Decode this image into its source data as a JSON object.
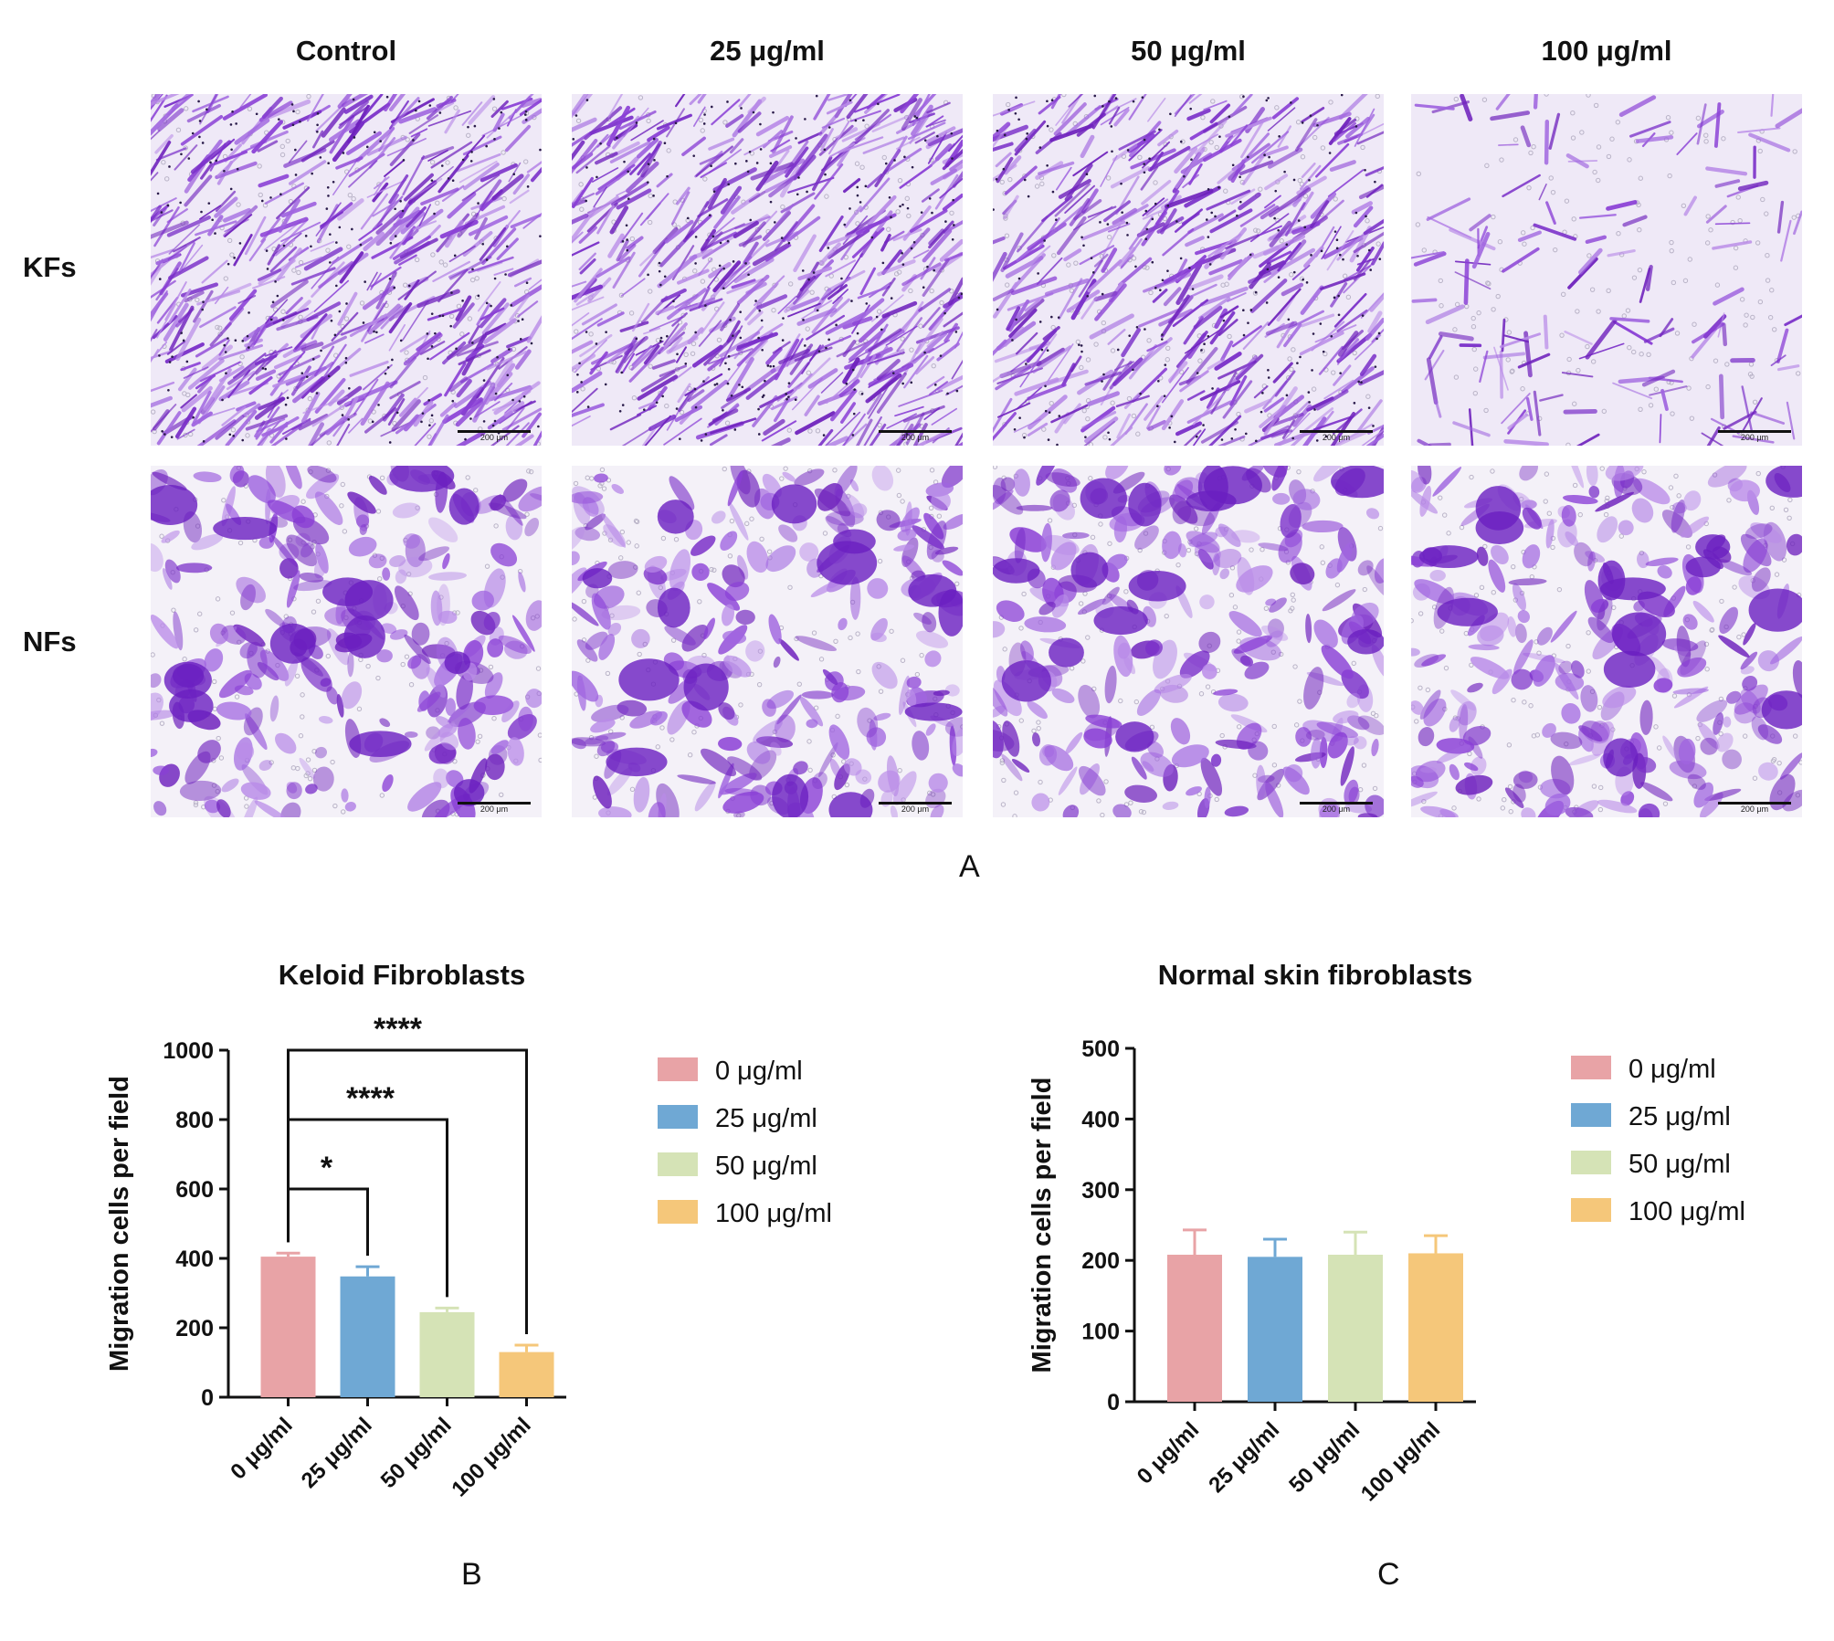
{
  "panel_a": {
    "letter": "A",
    "columns": [
      "Control",
      "25 μg/ml",
      "50 μg/ml",
      "100 μg/ml"
    ],
    "rows": [
      "KFs",
      "NFs"
    ],
    "scale_bar": "200 μm"
  },
  "colors": {
    "series": [
      "#e8a3a6",
      "#6fa8d4",
      "#d5e3b6",
      "#f5c77a"
    ],
    "stain": "#8a3fd6"
  },
  "chart_data": [
    {
      "type": "bar",
      "panel": "B",
      "title": "Keloid Fibroblasts",
      "ylabel": "Migration cells per field",
      "xlabel": "",
      "categories": [
        "0 μg/ml",
        "25 μg/ml",
        "50 μg/ml",
        "100 μg/ml"
      ],
      "values": [
        405,
        348,
        245,
        130
      ],
      "errors": [
        10,
        28,
        12,
        20
      ],
      "ylim": [
        0,
        1000
      ],
      "yticks": [
        0,
        200,
        400,
        600,
        800,
        1000
      ],
      "legend": [
        "0 μg/ml",
        "25 μg/ml",
        "50 μg/ml",
        "100 μg/ml"
      ],
      "legend_position": "right",
      "significance": [
        {
          "from": 0,
          "to": 1,
          "label": "*",
          "level": 1
        },
        {
          "from": 0,
          "to": 2,
          "label": "****",
          "level": 2
        },
        {
          "from": 0,
          "to": 3,
          "label": "****",
          "level": 3
        }
      ]
    },
    {
      "type": "bar",
      "panel": "C",
      "title": "Normal skin fibroblasts",
      "ylabel": "Migration cells per field",
      "xlabel": "",
      "categories": [
        "0 μg/ml",
        "25 μg/ml",
        "50 μg/ml",
        "100 μg/ml"
      ],
      "values": [
        208,
        205,
        208,
        210
      ],
      "errors": [
        35,
        25,
        32,
        25
      ],
      "ylim": [
        0,
        500
      ],
      "yticks": [
        0,
        100,
        200,
        300,
        400,
        500
      ],
      "legend": [
        "0 μg/ml",
        "25 μg/ml",
        "50 μg/ml",
        "100 μg/ml"
      ],
      "legend_position": "right",
      "significance": []
    }
  ]
}
